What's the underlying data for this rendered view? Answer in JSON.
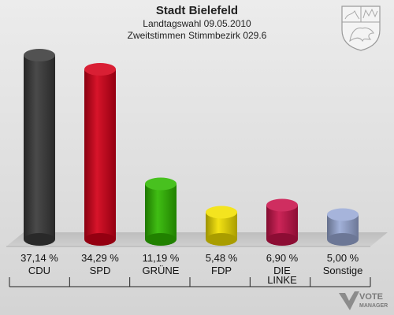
{
  "header": {
    "title": "Stadt Bielefeld",
    "subtitle": "Landtagswahl 09.05.2010",
    "subtitle2": "Zweitstimmen Stimmbezirk 029.6"
  },
  "logo": {
    "line1": "VOTE",
    "line2": "MANAGER"
  },
  "crest_icon": "nrw-coat-of-arms-icon",
  "chart_data": {
    "type": "bar",
    "title": "Stadt Bielefeld",
    "categories": [
      "CDU",
      "SPD",
      "GRÜNE",
      "FDP",
      "DIE LINKE",
      "Sonstige"
    ],
    "category_lines": [
      [
        "CDU"
      ],
      [
        "SPD"
      ],
      [
        "GRÜNE"
      ],
      [
        "FDP"
      ],
      [
        "DIE",
        "LINKE"
      ],
      [
        "Sonstige"
      ]
    ],
    "values": [
      37.14,
      34.29,
      11.19,
      5.48,
      6.9,
      5.0
    ],
    "value_labels": [
      "37,14 %",
      "34,29 %",
      "11,19 %",
      "5,48 %",
      "6,90 %",
      "5,00 %"
    ],
    "colors": [
      "#3a3a3a",
      "#d40018",
      "#2fb800",
      "#f2e000",
      "#c8124a",
      "#9aaad6"
    ],
    "ylim": [
      0,
      37.14
    ],
    "grid": false,
    "legend": "none"
  }
}
